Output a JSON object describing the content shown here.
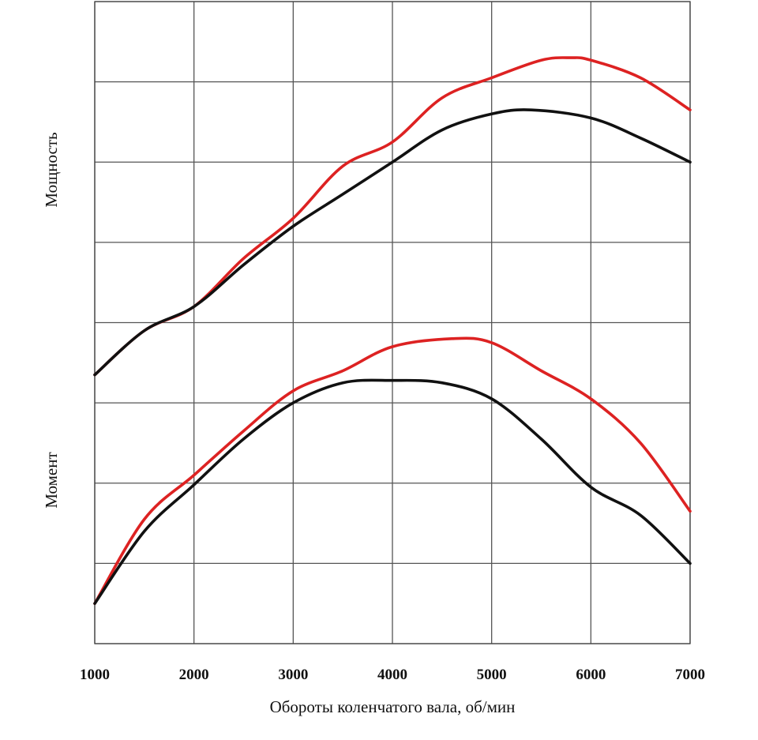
{
  "chart_data": {
    "type": "line",
    "xlabel": "Обороты коленчатого вала, об/мин",
    "ylabels": [
      "Мощность",
      "Момент"
    ],
    "x_ticks": [
      "1000",
      "2000",
      "3000",
      "4000",
      "5000",
      "6000",
      "7000"
    ],
    "xlim": [
      1000,
      7000
    ],
    "ylim": [
      0,
      8
    ],
    "grid": true,
    "y_tick_labels": "none",
    "series": [
      {
        "group": "Мощность",
        "color": "#dd2222",
        "x": [
          1000,
          1500,
          2000,
          2500,
          3000,
          3500,
          4000,
          4500,
          5000,
          5500,
          5800,
          6000,
          6500,
          7000
        ],
        "y": [
          3.35,
          3.9,
          4.2,
          4.8,
          5.3,
          5.95,
          6.25,
          6.8,
          7.05,
          7.27,
          7.3,
          7.27,
          7.05,
          6.65
        ]
      },
      {
        "group": "Мощность",
        "color": "#111111",
        "x": [
          1000,
          1500,
          2000,
          2500,
          3000,
          3500,
          4000,
          4500,
          5000,
          5400,
          6000,
          6500,
          7000
        ],
        "y": [
          3.35,
          3.9,
          4.2,
          4.72,
          5.2,
          5.6,
          6.0,
          6.4,
          6.6,
          6.65,
          6.55,
          6.3,
          6.0
        ]
      },
      {
        "group": "Момент",
        "color": "#dd2222",
        "x": [
          1000,
          1500,
          2000,
          2500,
          3000,
          3500,
          4000,
          4600,
          5000,
          5500,
          6000,
          6500,
          7000
        ],
        "y": [
          0.5,
          1.55,
          2.1,
          2.65,
          3.15,
          3.4,
          3.7,
          3.8,
          3.75,
          3.4,
          3.05,
          2.5,
          1.65
        ]
      },
      {
        "group": "Момент",
        "color": "#111111",
        "x": [
          1000,
          1500,
          2000,
          2500,
          3000,
          3500,
          4000,
          4500,
          5000,
          5500,
          6000,
          6500,
          7000
        ],
        "y": [
          0.5,
          1.4,
          1.98,
          2.55,
          3.0,
          3.25,
          3.28,
          3.25,
          3.05,
          2.55,
          1.95,
          1.6,
          1.0
        ]
      }
    ]
  }
}
